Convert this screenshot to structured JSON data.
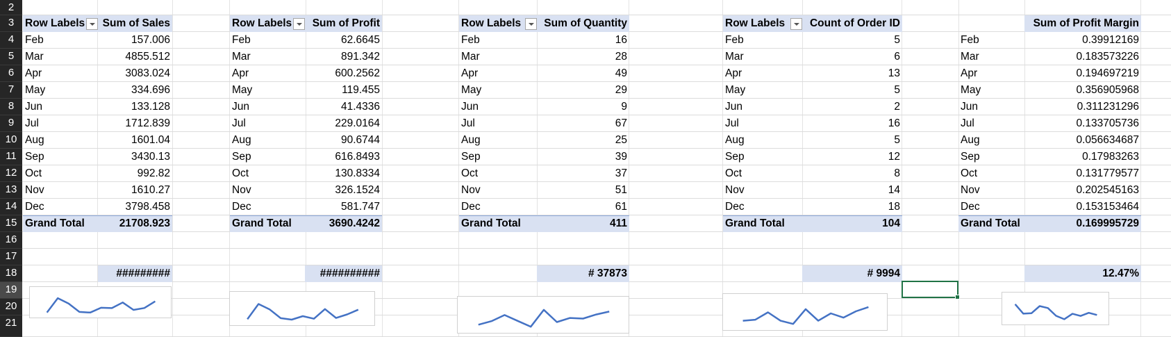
{
  "rows": [
    "2",
    "3",
    "4",
    "5",
    "6",
    "7",
    "8",
    "9",
    "10",
    "11",
    "12",
    "13",
    "14",
    "15",
    "16",
    "17",
    "18",
    "19",
    "20",
    "21"
  ],
  "pivots": [
    {
      "id": "sales",
      "header_label": "Row Labels",
      "header_value": "Sum of Sales",
      "has_filter": true,
      "months": [
        "Feb",
        "Mar",
        "Apr",
        "May",
        "Jun",
        "Jul",
        "Aug",
        "Sep",
        "Oct",
        "Nov",
        "Dec"
      ],
      "values": [
        "157.006",
        "4855.512",
        "3083.024",
        "334.696",
        "133.128",
        "1712.839",
        "1601.04",
        "3430.13",
        "992.82",
        "1610.27",
        "3798.458"
      ],
      "total_label": "Grand Total",
      "total_value": "21708.923",
      "kpi": "#########",
      "sparkline": [
        157.006,
        4855.512,
        3083.024,
        334.696,
        133.128,
        1712.839,
        1601.04,
        3430.13,
        992.82,
        1610.27,
        3798.458
      ]
    },
    {
      "id": "profit",
      "header_label": "Row Labels",
      "header_value": "Sum of Profit",
      "has_filter": true,
      "months": [
        "Feb",
        "Mar",
        "Apr",
        "May",
        "Jun",
        "Jul",
        "Aug",
        "Sep",
        "Oct",
        "Nov",
        "Dec"
      ],
      "values": [
        "62.6645",
        "891.342",
        "600.2562",
        "119.455",
        "41.4336",
        "229.0164",
        "90.6744",
        "616.8493",
        "130.8334",
        "326.1524",
        "581.747"
      ],
      "total_label": "Grand Total",
      "total_value": "3690.4242",
      "kpi": "##########",
      "sparkline": [
        62.6645,
        891.342,
        600.2562,
        119.455,
        41.4336,
        229.0164,
        90.6744,
        616.8493,
        130.8334,
        326.1524,
        581.747
      ]
    },
    {
      "id": "quantity",
      "header_label": "Row Labels",
      "header_value": "Sum of Quantity",
      "has_filter": true,
      "months": [
        "Feb",
        "Mar",
        "Apr",
        "May",
        "Jun",
        "Jul",
        "Aug",
        "Sep",
        "Oct",
        "Nov",
        "Dec"
      ],
      "values": [
        "16",
        "28",
        "49",
        "29",
        "9",
        "67",
        "25",
        "39",
        "37",
        "51",
        "61"
      ],
      "total_label": "Grand Total",
      "total_value": "411",
      "kpi": "# 37873",
      "sparkline": [
        16,
        28,
        49,
        29,
        9,
        67,
        25,
        39,
        37,
        51,
        61
      ]
    },
    {
      "id": "orders",
      "header_label": "Row Labels",
      "header_value": "Count of Order ID",
      "has_filter": true,
      "months": [
        "Feb",
        "Mar",
        "Apr",
        "May",
        "Jun",
        "Jul",
        "Aug",
        "Sep",
        "Oct",
        "Nov",
        "Dec"
      ],
      "values": [
        "5",
        "6",
        "13",
        "5",
        "2",
        "16",
        "5",
        "12",
        "8",
        "14",
        "18"
      ],
      "total_label": "Grand Total",
      "total_value": "104",
      "kpi": "# 9994",
      "sparkline": [
        5,
        6,
        13,
        5,
        2,
        16,
        5,
        12,
        8,
        14,
        18
      ]
    },
    {
      "id": "margin",
      "header_label": "",
      "header_value": "Sum of Profit Margin",
      "has_filter": false,
      "months": [
        "Feb",
        "Mar",
        "Apr",
        "May",
        "Jun",
        "Jul",
        "Aug",
        "Sep",
        "Oct",
        "Nov",
        "Dec"
      ],
      "values": [
        "0.39912169",
        "0.183573226",
        "0.194697219",
        "0.356905968",
        "0.311231296",
        "0.133705736",
        "0.056634687",
        "0.17983263",
        "0.131779577",
        "0.202545163",
        "0.153153464"
      ],
      "total_label": "Grand Total",
      "total_value": "0.169995729",
      "kpi": "12.47%",
      "sparkline": [
        0.39912169,
        0.183573226,
        0.194697219,
        0.356905968,
        0.311231296,
        0.133705736,
        0.056634687,
        0.17983263,
        0.131779577,
        0.202545163,
        0.153153464
      ]
    }
  ],
  "colors": {
    "header_fill": "#d9e1f2",
    "sparkline": "#4472c4",
    "selection": "#217346",
    "row_header": "#262626"
  }
}
